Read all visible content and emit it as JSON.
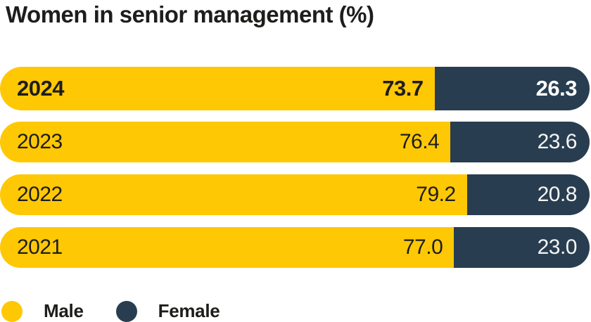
{
  "title": "Women in senior management (%)",
  "chart_data": {
    "type": "bar",
    "orientation": "horizontal",
    "stacked": true,
    "title": "Women in senior management (%)",
    "categories": [
      "2024",
      "2023",
      "2022",
      "2021"
    ],
    "series": [
      {
        "name": "Male",
        "values": [
          73.7,
          76.4,
          79.2,
          77.0
        ],
        "color": "#FFC805"
      },
      {
        "name": "Female",
        "values": [
          26.3,
          23.6,
          20.8,
          23.0
        ],
        "color": "#283D50"
      }
    ],
    "value_range": [
      0,
      100
    ],
    "grid": false,
    "legend_position": "bottom",
    "emphasized_category": "2024"
  },
  "rows": [
    {
      "year": "2024",
      "male": "73.7",
      "female": "26.3"
    },
    {
      "year": "2023",
      "male": "76.4",
      "female": "23.6"
    },
    {
      "year": "2022",
      "male": "79.2",
      "female": "20.8"
    },
    {
      "year": "2021",
      "male": "77.0",
      "female": "23.0"
    }
  ],
  "legend": {
    "male_label": "Male",
    "female_label": "Female"
  },
  "colors": {
    "male": "#FFC805",
    "female": "#283D50",
    "title_text": "#1d1d1b",
    "female_text": "#ffffff",
    "background": "#ffffff"
  }
}
